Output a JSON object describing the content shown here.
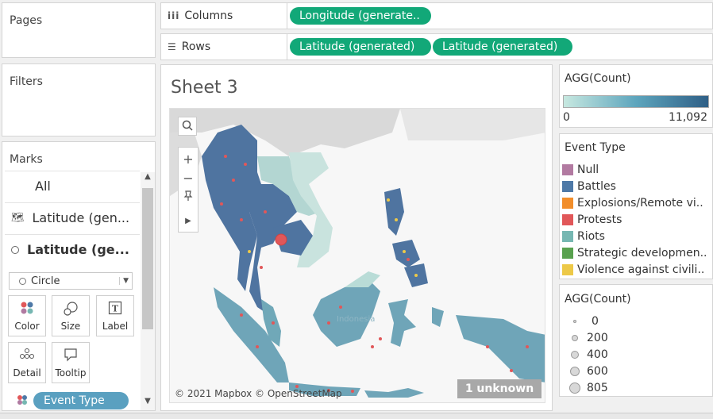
{
  "pages": {
    "title": "Pages"
  },
  "filters": {
    "title": "Filters"
  },
  "columns": {
    "label": "Columns",
    "pills": [
      "Longitude (generate.."
    ]
  },
  "rows": {
    "label": "Rows",
    "pills": [
      "Latitude (generated)",
      "Latitude (generated)"
    ]
  },
  "marks": {
    "title": "Marks",
    "items": [
      {
        "label": "All"
      },
      {
        "label": "Latitude (gen..."
      },
      {
        "label": "Latitude (ge..."
      }
    ],
    "mark_type": "Circle",
    "buttons": [
      {
        "label": "Color",
        "icon": "color-icon"
      },
      {
        "label": "Size",
        "icon": "size-icon"
      },
      {
        "label": "Label",
        "icon": "label-icon"
      },
      {
        "label": "Detail",
        "icon": "detail-icon"
      },
      {
        "label": "Tooltip",
        "icon": "tooltip-icon"
      }
    ],
    "color_pill": "Event Type"
  },
  "sheet": {
    "title": "Sheet 3",
    "attribution": "© 2021 Mapbox © OpenStreetMap",
    "unknown_badge": "1 unknown",
    "map_label": "Indonesia"
  },
  "agg_color_legend": {
    "title": "AGG(Count)",
    "min": "0",
    "max": "11,092"
  },
  "event_type_legend": {
    "title": "Event Type",
    "items": [
      {
        "label": "Null",
        "color": "#b27aa1"
      },
      {
        "label": "Battles",
        "color": "#4e79a7"
      },
      {
        "label": "Explosions/Remote vi..",
        "color": "#f28e2b"
      },
      {
        "label": "Protests",
        "color": "#e15759"
      },
      {
        "label": "Riots",
        "color": "#76b7b2"
      },
      {
        "label": "Strategic developmen..",
        "color": "#59a14f"
      },
      {
        "label": "Violence against civili..",
        "color": "#edc948"
      }
    ]
  },
  "agg_size_legend": {
    "title": "AGG(Count)",
    "items": [
      "0",
      "200",
      "400",
      "600",
      "805"
    ]
  }
}
